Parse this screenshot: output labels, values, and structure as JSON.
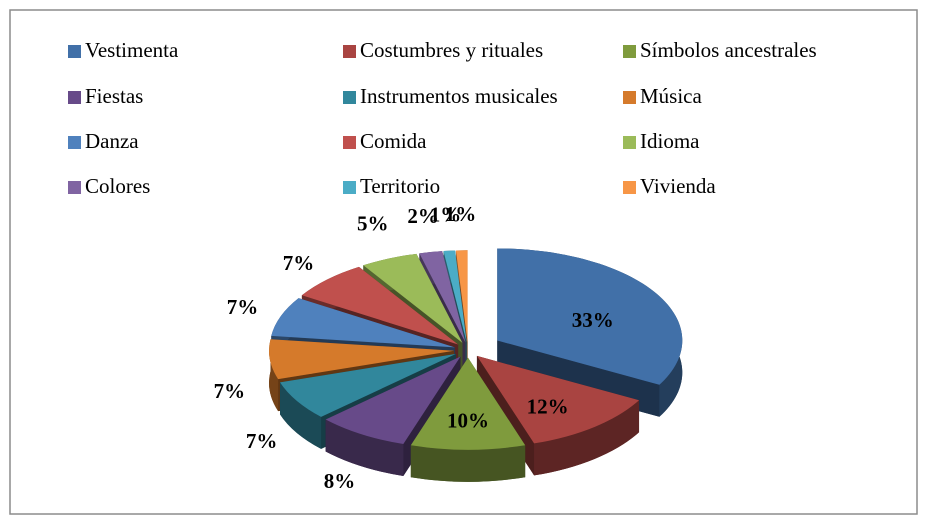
{
  "chart_data": {
    "type": "pie",
    "categories": [
      "Vestimenta",
      "Costumbres y rituales",
      "Símbolos ancestrales",
      "Fiestas",
      "Instrumentos musicales",
      "Música",
      "Danza",
      "Comida",
      "Idioma",
      "Colores",
      "Territorio",
      "Vivienda"
    ],
    "values": [
      33,
      12,
      10,
      8,
      7,
      7,
      7,
      7,
      5,
      2,
      1,
      1
    ],
    "value_labels": [
      "33%",
      "12%",
      "10%",
      "8%",
      "7%",
      "7%",
      "7%",
      "7%",
      "5%",
      "2%",
      "1%",
      "1%"
    ],
    "colors": [
      "#4170a8",
      "#a94441",
      "#7f9b3d",
      "#674a89",
      "#31879c",
      "#d57a2b",
      "#4f81bd",
      "#c0504d",
      "#9bbb59",
      "#8064a2",
      "#4bacc6",
      "#f79646"
    ],
    "legend": "top"
  }
}
